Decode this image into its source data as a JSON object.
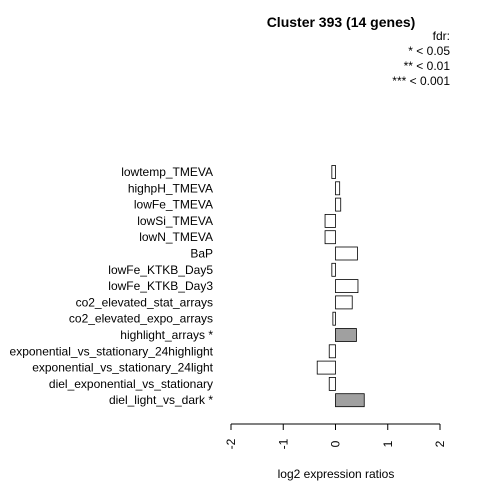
{
  "chart_data": {
    "type": "bar",
    "orientation": "horizontal",
    "title": "Cluster 393 (14 genes)",
    "legend": {
      "title": "fdr:",
      "entries": [
        "* < 0.05",
        "** < 0.01",
        "*** < 0.001"
      ],
      "placement": "top-right"
    },
    "xlabel": "log2 expression ratios",
    "xlim": [
      -2,
      2
    ],
    "xticks": [
      -2,
      -1,
      0,
      1,
      2
    ],
    "xtick_labels": [
      "-2",
      "-1",
      "0",
      "1",
      "2"
    ],
    "categories": [
      "lowtemp_TMEVA",
      "highpH_TMEVA",
      "lowFe_TMEVA",
      "lowSi_TMEVA",
      "lowN_TMEVA",
      "BaP",
      "lowFe_KTKB_Day5",
      "lowFe_KTKB_Day3",
      "co2_elevated_stat_arrays",
      "co2_elevated_expo_arrays",
      "highlight_arrays *",
      "exponential_vs_stationary_24highlight",
      "exponential_vs_stationary_24light",
      "diel_exponential_vs_stationary",
      "diel_light_vs_dark *"
    ],
    "values": [
      -0.07,
      0.08,
      0.1,
      -0.2,
      -0.2,
      0.42,
      -0.07,
      0.43,
      0.32,
      -0.05,
      0.4,
      -0.12,
      -0.35,
      -0.12,
      0.55
    ],
    "significant": [
      false,
      false,
      false,
      false,
      false,
      false,
      false,
      false,
      false,
      false,
      true,
      false,
      false,
      false,
      true
    ],
    "colors": {
      "significant": "#a0a0a0",
      "not_significant": "#ffffff",
      "outline": "#000000"
    }
  }
}
